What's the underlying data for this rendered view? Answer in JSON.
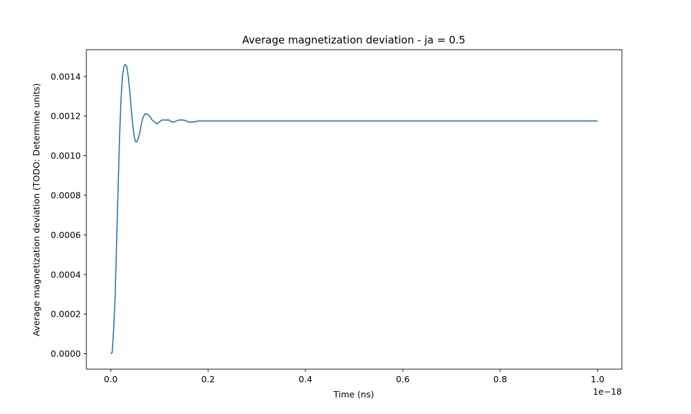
{
  "chart_data": {
    "type": "line",
    "title": "Average magnetization deviation - ja = 0.5",
    "xlabel": "Time (ns)",
    "ylabel": "Average magnetization deviation (TODO: Determine units)",
    "x_offset_label": "1e−18",
    "xlim": [
      -0.05,
      1.05
    ],
    "ylim": [
      -7.8e-05,
      0.001535
    ],
    "xticks": [
      0.0,
      0.2,
      0.4,
      0.6,
      0.8,
      1.0
    ],
    "xtick_labels": [
      "0.0",
      "0.2",
      "0.4",
      "0.6",
      "0.8",
      "1.0"
    ],
    "yticks": [
      0.0,
      0.0002,
      0.0004,
      0.0006,
      0.0008,
      0.001,
      0.0012,
      0.0014
    ],
    "ytick_labels": [
      "0.0000",
      "0.0002",
      "0.0004",
      "0.0006",
      "0.0008",
      "0.0010",
      "0.0012",
      "0.0014"
    ],
    "grid": false,
    "line_color": "#1f77b4",
    "series": [
      {
        "x": [
          0.0,
          0.003,
          0.006,
          0.009,
          0.012,
          0.015,
          0.018,
          0.021,
          0.024,
          0.027,
          0.03,
          0.033,
          0.036,
          0.039,
          0.042,
          0.045,
          0.048,
          0.051,
          0.054,
          0.057,
          0.06,
          0.063,
          0.066,
          0.07,
          0.075,
          0.08,
          0.085,
          0.09,
          0.095,
          0.1,
          0.105,
          0.11,
          0.115,
          0.12,
          0.125,
          0.13,
          0.14,
          0.15,
          0.16,
          0.17,
          0.18,
          0.2,
          0.22,
          0.25,
          0.3,
          0.4,
          0.5,
          0.6,
          0.7,
          0.8,
          0.9,
          1.0
        ],
        "y": [
          0.0,
          5e-06,
          0.00012,
          0.00028,
          0.00055,
          0.00082,
          0.00108,
          0.00128,
          0.0014,
          0.00145,
          0.00146,
          0.00145,
          0.0014,
          0.00133,
          0.00124,
          0.00116,
          0.0011,
          0.00107,
          0.00107,
          0.00109,
          0.00112,
          0.00116,
          0.00119,
          0.00121,
          0.00121,
          0.0012,
          0.00118,
          0.00117,
          0.00116,
          0.00117,
          0.00118,
          0.00118,
          0.00118,
          0.00118,
          0.00117,
          0.00117,
          0.00118,
          0.00118,
          0.00117,
          0.00117,
          0.001175,
          0.001175,
          0.001175,
          0.001175,
          0.001175,
          0.001175,
          0.001175,
          0.001175,
          0.001175,
          0.001175,
          0.001175,
          0.001175
        ]
      }
    ]
  }
}
